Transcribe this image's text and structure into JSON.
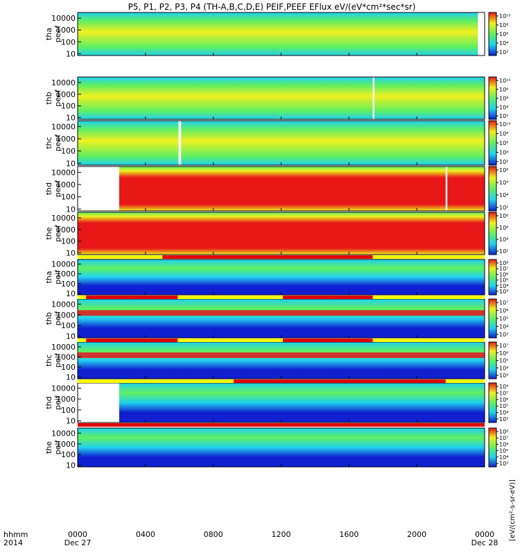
{
  "chart_data": {
    "type": "heatmap",
    "title": "P5, P1, P2, P3, P4 (TH-A,B,C,D,E) PEIF,PEEF EFlux eV/(eV*cm²*sec*sr)",
    "x_axis": {
      "label_line1": "hhmm",
      "label_line2": "2014",
      "tick_labels": [
        "0000",
        "0400",
        "0800",
        "1200",
        "1600",
        "2000",
        "0000"
      ],
      "tick_hours": [
        0,
        4,
        8,
        12,
        16,
        20,
        24
      ],
      "date_labels": [
        {
          "text": "Dec 27",
          "hour": 0
        },
        {
          "text": "Dec 28",
          "hour": 24
        }
      ],
      "range_hours": [
        0,
        24
      ]
    },
    "y_axis": {
      "scale": "log",
      "range_eV": [
        7,
        30000
      ],
      "tick_labels": [
        "10",
        "100",
        "1000",
        "10000"
      ],
      "tick_values": [
        10,
        100,
        1000,
        10000
      ]
    },
    "colorbar_label": "[eV/(cm²-s-sr-eV)]",
    "colors": {
      "low": "#1020d0",
      "mid_low": "#20d0f0",
      "mid": "#60f060",
      "mid_high": "#f0f020",
      "high": "#e81818",
      "bar_yellow": "#ffff00",
      "bar_red": "#e00000"
    },
    "panels": [
      {
        "ylabel1": "tha",
        "ylabel2": "peef",
        "colorbar_ticks": [
          "10¹⁰",
          "10⁸",
          "10⁶",
          "10⁴",
          "10²"
        ],
        "data_start_hour": 0.0,
        "gap_hours": [
          [
            23.6,
            24.0
          ]
        ],
        "level": 0.55
      },
      {
        "ylabel1": "thb",
        "ylabel2": "peef",
        "colorbar_ticks": [
          "10¹⁰",
          "10⁸",
          "10⁶",
          "10⁴",
          "10²"
        ],
        "data_start_hour": 0.0,
        "gap_hours": [
          [
            17.4,
            17.5
          ]
        ],
        "level": 0.45
      },
      {
        "ylabel1": "thc",
        "ylabel2": "peef",
        "colorbar_ticks": [
          "10¹⁰",
          "10⁸",
          "10⁶",
          "10⁴",
          "10²"
        ],
        "data_start_hour": 0.0,
        "gap_hours": [
          [
            5.95,
            6.1
          ]
        ],
        "level": 0.45
      },
      {
        "ylabel1": "thd",
        "ylabel2": "peef",
        "colorbar_ticks": [
          "10⁸",
          "10⁶",
          "10⁴",
          "10²"
        ],
        "data_start_hour": 2.45,
        "gap_hours": [
          [
            21.7,
            21.8
          ]
        ],
        "level": 0.85
      },
      {
        "ylabel1": "the",
        "ylabel2": "peef",
        "colorbar_ticks": [
          "10⁸",
          "10⁶",
          "10⁴",
          "10²"
        ],
        "data_start_hour": 0.0,
        "gap_hours": [],
        "level": 0.88
      },
      {
        "ylabel1": "tha",
        "ylabel2": "peif",
        "colorbar_ticks": [
          "10⁸",
          "10⁷",
          "10⁶",
          "10⁵",
          "10⁴",
          "10³"
        ],
        "data_start_hour": 0.0,
        "gap_hours": [],
        "level": 0.35
      },
      {
        "ylabel1": "thb",
        "ylabel2": "peif",
        "colorbar_ticks": [
          "10⁷",
          "10⁶",
          "10⁵",
          "10⁴",
          "10³"
        ],
        "data_start_hour": 0.0,
        "gap_hours": [],
        "level": 0.3
      },
      {
        "ylabel1": "thc",
        "ylabel2": "peif",
        "colorbar_ticks": [
          "10⁷",
          "10⁶",
          "10⁵",
          "10⁴",
          "10³"
        ],
        "data_start_hour": 0.0,
        "gap_hours": [],
        "level": 0.3
      },
      {
        "ylabel1": "thd",
        "ylabel2": "peif",
        "colorbar_ticks": [
          "10⁸",
          "10⁷",
          "10⁶",
          "10⁵",
          "10⁴",
          "10³"
        ],
        "data_start_hour": 2.45,
        "gap_hours": [],
        "level": 0.35
      },
      {
        "ylabel1": "the",
        "ylabel2": "peif",
        "colorbar_ticks": [
          "10⁸",
          "10⁷",
          "10⁶",
          "10⁵",
          "10⁴",
          "10³"
        ],
        "data_start_hour": 0.0,
        "gap_hours": [],
        "level": 0.38
      }
    ],
    "mode_bars": [
      {
        "after_panel": 4,
        "red_hours": [
          [
            5.0,
            17.4
          ]
        ]
      },
      {
        "after_panel": 5,
        "red_hours": [
          [
            0.5,
            5.9
          ],
          [
            12.1,
            17.4
          ]
        ]
      },
      {
        "after_panel": 6,
        "red_hours": [
          [
            0.5,
            5.9
          ],
          [
            12.1,
            17.4
          ]
        ]
      },
      {
        "after_panel": 7,
        "red_hours": [
          [
            9.2,
            21.7
          ]
        ]
      },
      {
        "after_panel": 8,
        "red_hours": [
          [
            0.0,
            24.0
          ]
        ]
      }
    ]
  }
}
